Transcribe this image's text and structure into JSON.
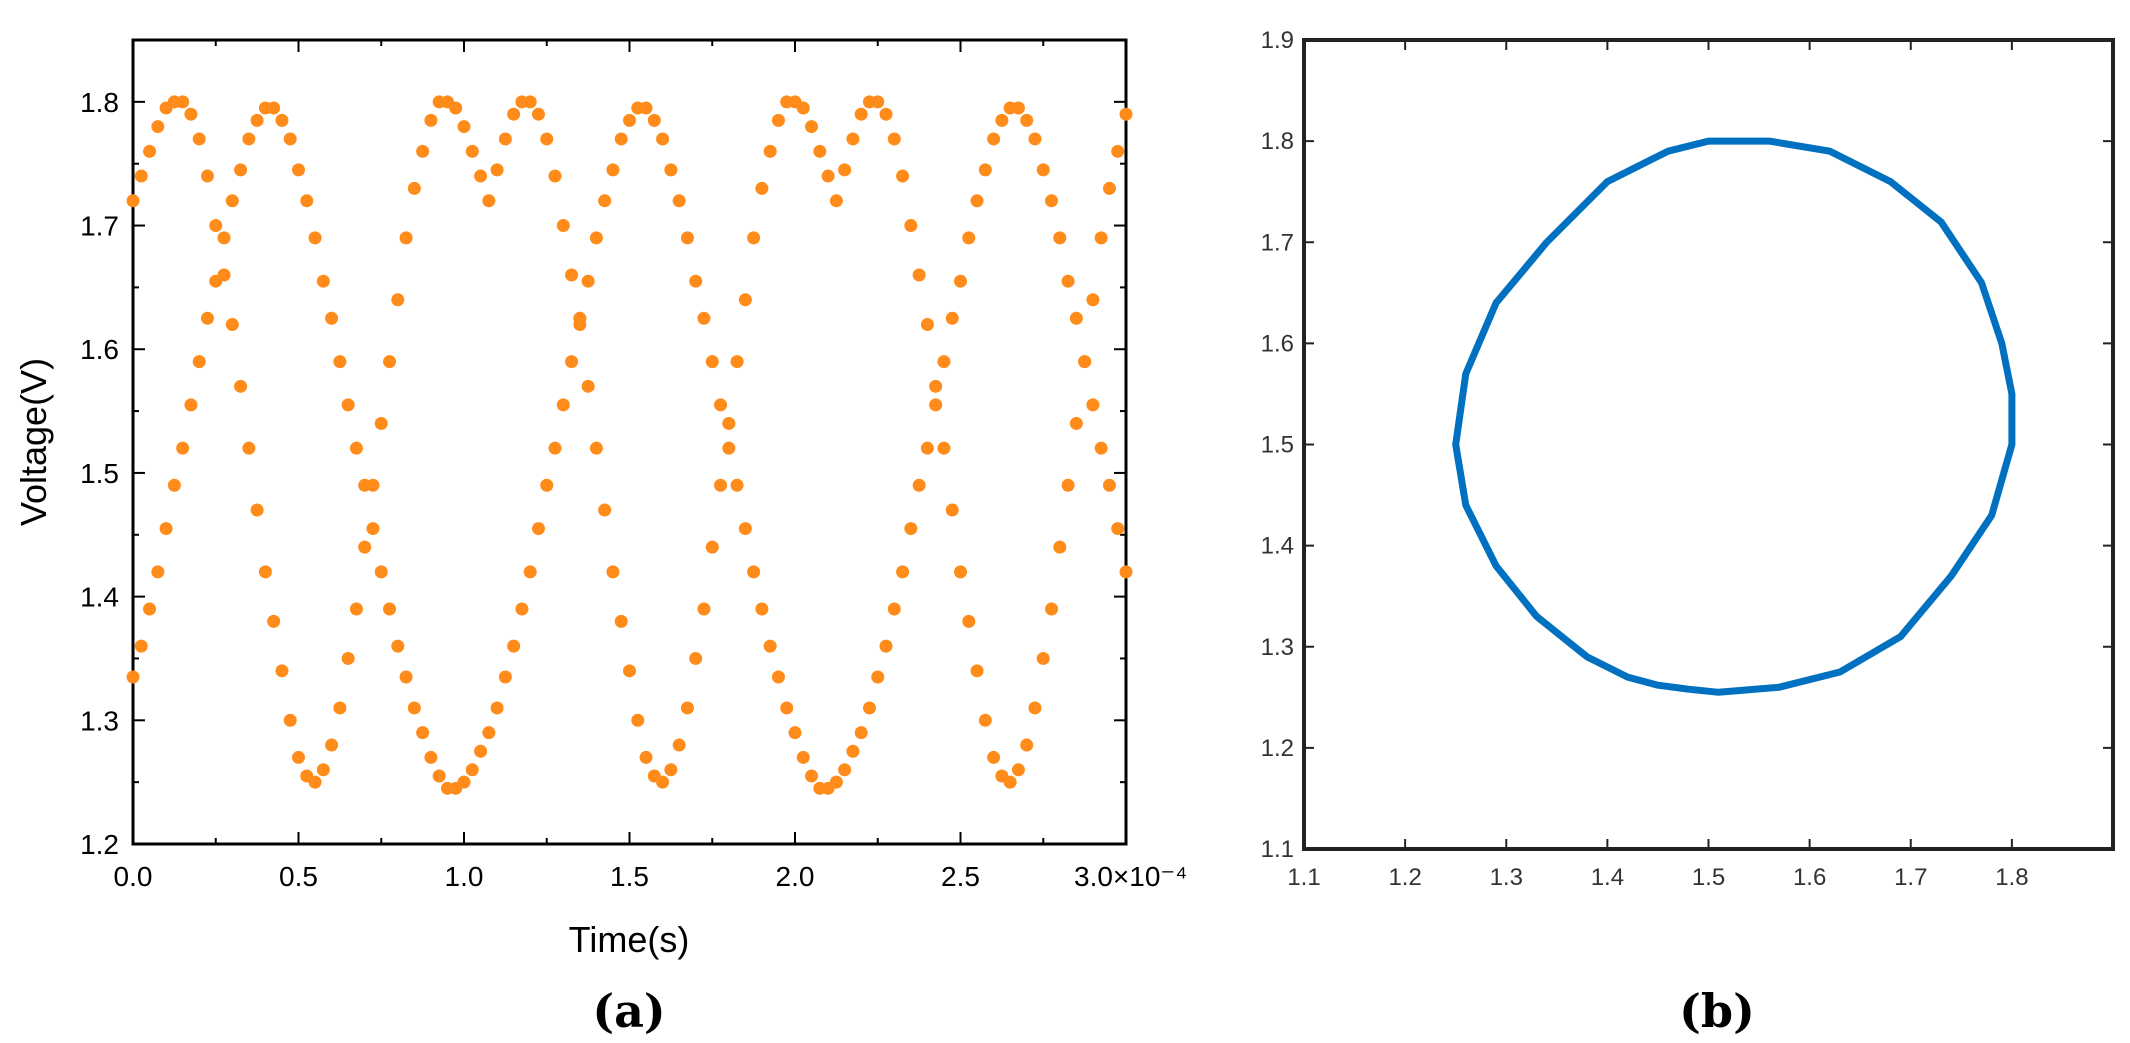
{
  "figure_labels": {
    "a": "(a)",
    "b": "(b)"
  },
  "chart_data": [
    {
      "id": "a",
      "type": "scatter",
      "xlabel": "Time(s)",
      "ylabel": "Voltage(V)",
      "xlim": [
        0,
        0.0003
      ],
      "ylim": [
        1.2,
        1.85
      ],
      "x_ticks": [
        "0.0",
        "0.5",
        "1.0",
        "1.5",
        "2.0",
        "2.5",
        "3.0×10⁻⁴"
      ],
      "y_ticks": [
        "1.2",
        "1.3",
        "1.4",
        "1.5",
        "1.6",
        "1.7",
        "1.8"
      ],
      "x_tick_values": [
        0,
        5e-05,
        0.0001,
        0.00015,
        0.0002,
        0.00025,
        0.0003
      ],
      "y_tick_values": [
        1.2,
        1.3,
        1.4,
        1.5,
        1.6,
        1.7,
        1.8
      ],
      "grid": false,
      "marker_color": "#FF8C1A",
      "series": [
        {
          "x": [
            0.0,
            2.5e-06,
            5e-06,
            7.5e-06,
            1e-05,
            1.25e-05,
            1.5e-05,
            1.75e-05,
            2e-05,
            2.25e-05,
            2.5e-05,
            2.75e-05,
            3e-05,
            3.25e-05,
            3.5e-05,
            3.75e-05,
            4e-05,
            4.25e-05,
            4.5e-05,
            4.75e-05,
            5e-05,
            5.25e-05,
            5.5e-05,
            5.75e-05,
            6e-05,
            6.25e-05,
            6.5e-05,
            6.75e-05,
            7e-05,
            7.25e-05,
            7.5e-05,
            7.75e-05,
            8e-05,
            8.25e-05,
            8.5e-05,
            8.75e-05,
            9e-05,
            9.25e-05,
            9.5e-05,
            9.75e-05,
            0.0001,
            0.0001025,
            0.000105,
            0.0001075,
            0.00011,
            0.0001125,
            0.000115,
            0.0001175,
            0.00012,
            0.0001225,
            0.000125,
            0.0001275,
            0.00013,
            0.0001325,
            0.000135,
            0.0001375,
            0.00014,
            0.0001425,
            0.000145,
            0.0001475,
            0.00015,
            0.0001525,
            0.000155,
            0.0001575,
            0.00016,
            0.0001625,
            0.000165,
            0.0001675,
            0.00017,
            0.0001725,
            0.000175,
            0.0001775,
            0.00018,
            0.0001825,
            0.000185,
            0.0001875,
            0.00019,
            0.0001925,
            0.000195,
            0.0001975,
            0.0002,
            0.0002025,
            0.000205,
            0.0002075,
            0.00021,
            0.0002125,
            0.000215,
            0.0002175,
            0.00022,
            0.0002225,
            0.000225,
            0.0002275,
            0.00023,
            0.0002325,
            0.000235,
            0.0002375,
            0.00024,
            0.0002425,
            0.000245,
            0.0002475,
            0.00025,
            0.0002525,
            0.000255,
            0.0002575,
            0.00026,
            0.0002625,
            0.000265,
            0.0002675,
            0.00027,
            0.0002725,
            0.000275,
            0.0002775,
            0.00028,
            0.0002825,
            0.000285,
            0.0002875,
            0.00029,
            0.0002925,
            0.000295,
            0.0002975,
            0.0003
          ],
          "y": [
            1.72,
            1.74,
            1.76,
            1.78,
            1.795,
            1.8,
            1.8,
            1.79,
            1.77,
            1.74,
            1.7,
            1.66,
            1.62,
            1.57,
            1.52,
            1.47,
            1.42,
            1.38,
            1.34,
            1.3,
            1.27,
            1.255,
            1.25,
            1.26,
            1.28,
            1.31,
            1.35,
            1.39,
            1.44,
            1.49,
            1.54,
            1.59,
            1.64,
            1.69,
            1.73,
            1.76,
            1.785,
            1.8,
            1.8,
            1.795,
            1.78,
            1.76,
            1.74,
            1.72,
            1.745,
            1.77,
            1.79,
            1.8,
            1.8,
            1.79,
            1.77,
            1.74,
            1.7,
            1.66,
            1.62,
            1.57,
            1.52,
            1.47,
            1.42,
            1.38,
            1.34,
            1.3,
            1.27,
            1.255,
            1.25,
            1.26,
            1.28,
            1.31,
            1.35,
            1.39,
            1.44,
            1.49,
            1.54,
            1.59,
            1.64,
            1.69,
            1.73,
            1.76,
            1.785,
            1.8,
            1.8,
            1.795,
            1.78,
            1.76,
            1.74,
            1.72,
            1.745,
            1.77,
            1.79,
            1.8,
            1.8,
            1.79,
            1.77,
            1.74,
            1.7,
            1.66,
            1.62,
            1.57,
            1.52,
            1.47,
            1.42,
            1.38,
            1.34,
            1.3,
            1.27,
            1.255,
            1.25,
            1.26,
            1.28,
            1.31,
            1.35,
            1.39,
            1.44,
            1.49,
            1.54,
            1.59,
            1.64,
            1.69,
            1.73,
            1.76,
            1.79
          ]
        },
        {
          "x": [
            0.0,
            2.5e-06,
            5e-06,
            7.5e-06,
            1e-05,
            1.25e-05,
            1.5e-05,
            1.75e-05,
            2e-05,
            2.25e-05,
            2.5e-05,
            2.75e-05,
            3e-05,
            3.25e-05,
            3.5e-05,
            3.75e-05,
            4e-05,
            4.25e-05,
            4.5e-05,
            4.75e-05,
            5e-05,
            5.25e-05,
            5.5e-05,
            5.75e-05,
            6e-05,
            6.25e-05,
            6.5e-05,
            6.75e-05,
            7e-05,
            7.25e-05,
            7.5e-05,
            7.75e-05,
            8e-05,
            8.25e-05,
            8.5e-05,
            8.75e-05,
            9e-05,
            9.25e-05,
            9.5e-05,
            9.75e-05,
            0.0001,
            0.0001025,
            0.000105,
            0.0001075,
            0.00011,
            0.0001125,
            0.000115,
            0.0001175,
            0.00012,
            0.0001225,
            0.000125,
            0.0001275,
            0.00013,
            0.0001325,
            0.000135,
            0.0001375,
            0.00014,
            0.0001425,
            0.000145,
            0.0001475,
            0.00015,
            0.0001525,
            0.000155,
            0.0001575,
            0.00016,
            0.0001625,
            0.000165,
            0.0001675,
            0.00017,
            0.0001725,
            0.000175,
            0.0001775,
            0.00018,
            0.0001825,
            0.000185,
            0.0001875,
            0.00019,
            0.0001925,
            0.000195,
            0.0001975,
            0.0002,
            0.0002025,
            0.000205,
            0.0002075,
            0.00021,
            0.0002125,
            0.000215,
            0.0002175,
            0.00022,
            0.0002225,
            0.000225,
            0.0002275,
            0.00023,
            0.0002325,
            0.000235,
            0.0002375,
            0.00024,
            0.0002425,
            0.000245,
            0.0002475,
            0.00025,
            0.0002525,
            0.000255,
            0.0002575,
            0.00026,
            0.0002625,
            0.000265,
            0.0002675,
            0.00027,
            0.0002725,
            0.000275,
            0.0002775,
            0.00028,
            0.0002825,
            0.000285,
            0.0002875,
            0.00029,
            0.0002925,
            0.000295,
            0.0002975,
            0.0003
          ],
          "y": [
            1.335,
            1.36,
            1.39,
            1.42,
            1.455,
            1.49,
            1.52,
            1.555,
            1.59,
            1.625,
            1.655,
            1.69,
            1.72,
            1.745,
            1.77,
            1.785,
            1.795,
            1.795,
            1.785,
            1.77,
            1.745,
            1.72,
            1.69,
            1.655,
            1.625,
            1.59,
            1.555,
            1.52,
            1.49,
            1.455,
            1.42,
            1.39,
            1.36,
            1.335,
            1.31,
            1.29,
            1.27,
            1.255,
            1.245,
            1.245,
            1.25,
            1.26,
            1.275,
            1.29,
            1.31,
            1.335,
            1.36,
            1.39,
            1.42,
            1.455,
            1.49,
            1.52,
            1.555,
            1.59,
            1.625,
            1.655,
            1.69,
            1.72,
            1.745,
            1.77,
            1.785,
            1.795,
            1.795,
            1.785,
            1.77,
            1.745,
            1.72,
            1.69,
            1.655,
            1.625,
            1.59,
            1.555,
            1.52,
            1.49,
            1.455,
            1.42,
            1.39,
            1.36,
            1.335,
            1.31,
            1.29,
            1.27,
            1.255,
            1.245,
            1.245,
            1.25,
            1.26,
            1.275,
            1.29,
            1.31,
            1.335,
            1.36,
            1.39,
            1.42,
            1.455,
            1.49,
            1.52,
            1.555,
            1.59,
            1.625,
            1.655,
            1.69,
            1.72,
            1.745,
            1.77,
            1.785,
            1.795,
            1.795,
            1.785,
            1.77,
            1.745,
            1.72,
            1.69,
            1.655,
            1.625,
            1.59,
            1.555,
            1.52,
            1.49,
            1.455,
            1.42
          ]
        }
      ]
    },
    {
      "id": "b",
      "type": "line",
      "xlabel": "",
      "ylabel": "",
      "xlim": [
        1.1,
        1.9
      ],
      "ylim": [
        1.1,
        1.9
      ],
      "x_ticks": [
        "1.1",
        "1.2",
        "1.3",
        "1.4",
        "1.5",
        "1.6",
        "1.7",
        "1.8"
      ],
      "y_ticks": [
        "1.1",
        "1.2",
        "1.3",
        "1.4",
        "1.5",
        "1.6",
        "1.7",
        "1.8",
        "1.9"
      ],
      "x_tick_values": [
        1.1,
        1.2,
        1.3,
        1.4,
        1.5,
        1.6,
        1.7,
        1.8
      ],
      "y_tick_values": [
        1.1,
        1.2,
        1.3,
        1.4,
        1.5,
        1.6,
        1.7,
        1.8,
        1.9
      ],
      "grid": false,
      "line_color": "#0070C0",
      "series": [
        {
          "x": [
            1.5,
            1.56,
            1.62,
            1.68,
            1.73,
            1.77,
            1.79,
            1.8,
            1.8,
            1.78,
            1.74,
            1.69,
            1.63,
            1.57,
            1.51,
            1.48,
            1.45,
            1.42,
            1.38,
            1.33,
            1.29,
            1.26,
            1.25,
            1.26,
            1.29,
            1.34,
            1.4,
            1.46,
            1.5
          ],
          "y": [
            1.8,
            1.8,
            1.79,
            1.76,
            1.72,
            1.66,
            1.6,
            1.55,
            1.5,
            1.43,
            1.37,
            1.31,
            1.275,
            1.26,
            1.255,
            1.258,
            1.262,
            1.27,
            1.29,
            1.33,
            1.38,
            1.44,
            1.5,
            1.57,
            1.64,
            1.7,
            1.76,
            1.79,
            1.8
          ]
        }
      ]
    }
  ]
}
